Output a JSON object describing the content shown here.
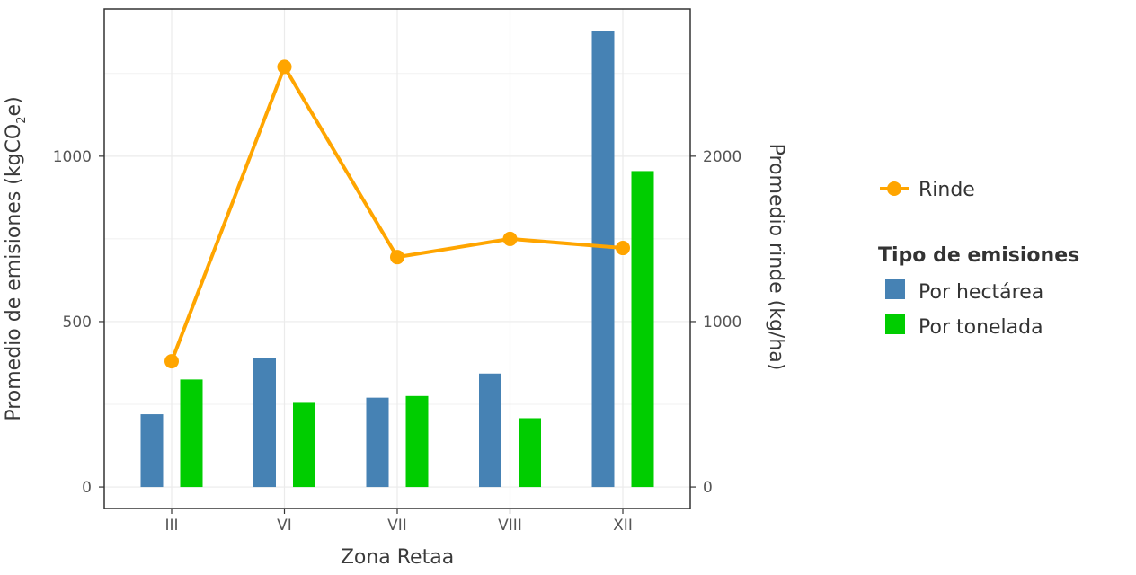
{
  "chart_data": {
    "type": "bar",
    "categories": [
      "III",
      "VI",
      "VII",
      "VIII",
      "XII"
    ],
    "series": [
      {
        "name": "Por hectárea",
        "axis": "left",
        "type": "bar",
        "color": "#4682b4",
        "values": [
          220,
          390,
          270,
          343,
          1378
        ]
      },
      {
        "name": "Por tonelada",
        "axis": "left",
        "type": "bar",
        "color": "#00cd00",
        "values": [
          325,
          257,
          275,
          208,
          955
        ]
      },
      {
        "name": "Rinde",
        "axis": "right",
        "type": "line",
        "color": "#ffa500",
        "values": [
          760,
          2540,
          1390,
          1500,
          1445
        ]
      }
    ],
    "xlabel": "Zona Retaa",
    "ylabel_left": "Promedio de emisiones (kgCO",
    "ylabel_left_sub": "2",
    "ylabel_left_suffix": "e)",
    "ylabel_right": "Promedio rinde (kg/ha)",
    "yticks_left": [
      0,
      500,
      1000
    ],
    "yticks_right": [
      0,
      1000,
      2000
    ],
    "ylim_left": [
      -65,
      1445
    ],
    "ylim_right": [
      -130,
      2890
    ],
    "grid": true,
    "legend_position": "right",
    "legend": {
      "line_label": "Rinde",
      "title": "Tipo de emisiones",
      "items": [
        "Por hectárea",
        "Por tonelada"
      ]
    }
  }
}
